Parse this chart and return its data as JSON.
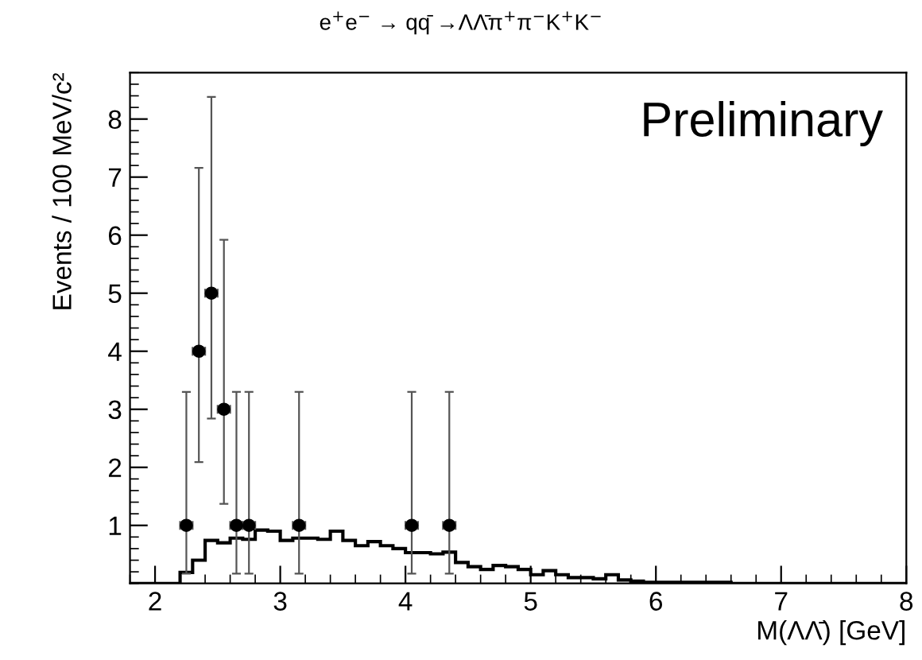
{
  "chart_data": {
    "type": "histogram",
    "title": "e$^{+}$e$^{−}$ → qq̄ →ΛΛ̄π$^{+}$π$^{−}$K$^{+}$K$^{−}$",
    "xlabel": "M(ΛΛ̄) [GeV]",
    "ylabel": "Events / 100 MeV/c²",
    "xlim": [
      1.8,
      8
    ],
    "ylim": [
      0,
      8.8
    ],
    "xticks": [
      2,
      3,
      4,
      5,
      6,
      7,
      8
    ],
    "yticks": [
      1,
      2,
      3,
      4,
      5,
      6,
      7,
      8
    ],
    "grid": false,
    "legend": false,
    "annotations": [
      "Preliminary"
    ],
    "series": [
      {
        "color": "#000000",
        "bins": [
          1.8,
          1.9,
          2.0,
          2.1,
          2.2,
          2.3,
          2.4,
          2.5,
          2.6,
          2.7,
          2.8,
          2.9,
          3.0,
          3.1,
          3.2,
          3.3,
          3.4,
          3.5,
          3.6,
          3.7,
          3.8,
          3.9,
          4.0,
          4.1,
          4.2,
          4.3,
          4.4,
          4.5,
          4.6,
          4.7,
          4.8,
          4.9,
          5.0,
          5.1,
          5.2,
          5.3,
          5.4,
          5.5,
          5.6,
          5.7,
          5.8,
          5.9,
          6.0,
          6.1,
          6.2,
          6.3,
          6.4,
          6.5,
          6.6,
          6.7,
          6.8,
          6.9,
          7.0,
          7.1,
          7.2,
          7.3,
          7.4,
          7.5,
          7.6,
          7.7,
          7.8,
          7.9,
          8.0
        ],
        "values": [
          0,
          0,
          0,
          0,
          0.19,
          0.4,
          0.74,
          0.7,
          0.78,
          0.76,
          0.92,
          0.9,
          0.74,
          0.78,
          0.78,
          0.76,
          0.9,
          0.74,
          0.65,
          0.72,
          0.65,
          0.6,
          0.53,
          0.53,
          0.51,
          0.54,
          0.36,
          0.29,
          0.24,
          0.31,
          0.29,
          0.24,
          0.15,
          0.22,
          0.15,
          0.1,
          0.1,
          0.08,
          0.15,
          0.06,
          0.04,
          0.02,
          0.02,
          0.02,
          0.02,
          0.02,
          0.02,
          0.02,
          0,
          0,
          0,
          0,
          0,
          0,
          0,
          0,
          0,
          0,
          0,
          0,
          0,
          0
        ]
      },
      {
        "type": "scatter",
        "color": "#000000",
        "marker": "circle",
        "x": [
          2.25,
          2.35,
          2.45,
          2.55,
          2.65,
          2.75,
          3.15,
          4.05,
          4.35
        ],
        "values": [
          1,
          4,
          5,
          3,
          1,
          1,
          1,
          1,
          1
        ],
        "errors": [
          [
            0.17,
            3.3
          ],
          [
            2.09,
            7.16
          ],
          [
            2.84,
            8.38
          ],
          [
            1.37,
            5.92
          ],
          [
            0.17,
            3.3
          ],
          [
            0.17,
            3.3
          ],
          [
            0.17,
            3.3
          ],
          [
            0.17,
            3.3
          ],
          [
            0.17,
            3.3
          ]
        ],
        "xerrors": [
          0.05,
          0.05,
          0.05,
          0.05,
          0.05,
          0.05,
          0.05,
          0.05,
          0.05
        ]
      }
    ]
  }
}
